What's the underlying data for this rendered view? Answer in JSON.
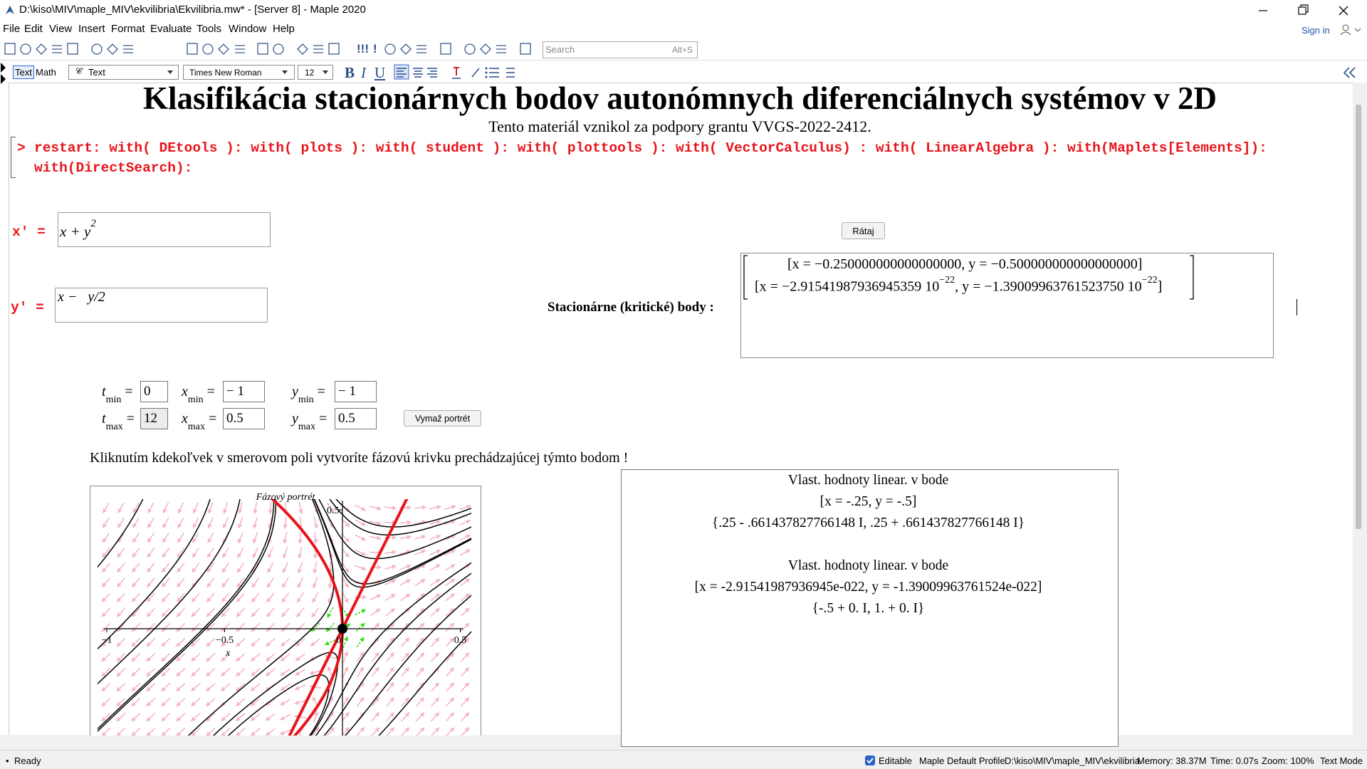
{
  "window": {
    "title": "D:\\kiso\\MIV\\maple_MIV\\ekvilibria\\Ekvilibria.mw* - [Server 8] - Maple 2020"
  },
  "menu": [
    "File",
    "Edit",
    "View",
    "Insert",
    "Format",
    "Evaluate",
    "Tools",
    "Window",
    "Help"
  ],
  "sign_in": "Sign in",
  "toolbar": {
    "execute_all": "!!!",
    "execute": "!",
    "search_placeholder": "Search",
    "search_shortcut": "Alt+S"
  },
  "format_bar": {
    "text_mode": "Text",
    "math_mode": "Math",
    "style": "Text",
    "font": "Times New Roman",
    "size": "12",
    "bold": "B",
    "italic": "I",
    "underline": "U"
  },
  "document": {
    "title": "Klasifikácia stacionárnych bodov autonómnych diferenciálnych systémov v 2D",
    "subtitle": "Tento materiál vznikol za podpory grantu VVGS-2022-2412.",
    "prompt": ">",
    "command_lines": [
      "restart: with( DEtools ): with( plots ): with( student ): with( plottools ): with( VectorCalculus) : with( LinearAlgebra ): with(Maplets[Elements]):",
      "with(DirectSearch):"
    ],
    "x_label": "x' =",
    "x_expr": {
      "base": "x + y",
      "exponent": "2"
    },
    "y_label": "y' =",
    "y_expr": "x −   y/2",
    "compute_button": "Rátaj",
    "stationary_label": "Stacionárne (kritické) body :",
    "stationary_rows": [
      [
        "[x = −0.250000000000000000, y = −0.500000000000000000]"
      ],
      [
        "[x = −2.91541987936945359 10",
        "−22",
        ", y = −1.39009963761523750 10",
        "−22",
        "]"
      ]
    ],
    "params": {
      "eq": "=",
      "items": [
        {
          "var": "t",
          "sub": "min",
          "value": "0"
        },
        {
          "var": "x",
          "sub": "min",
          "value": "− 1"
        },
        {
          "var": "y",
          "sub": "min",
          "value": "− 1"
        },
        {
          "var": "t",
          "sub": "max",
          "value": "12"
        },
        {
          "var": "x",
          "sub": "max",
          "value": "0.5"
        },
        {
          "var": "y",
          "sub": "max",
          "value": "0.5"
        }
      ]
    },
    "clear_button": "Vymaž portrét",
    "instruction": "Kliknutím kdekoľvek v smerovom poli vytvoríte fázovú krivku prechádzajúcej týmto bodom !",
    "plot": {
      "title": "Fázový portrét",
      "x_ticks": [
        "−1",
        "−0.5",
        "0.5"
      ],
      "origin": "0",
      "y_tick": "0.5",
      "x_label": "x"
    },
    "eigen_lines": [
      "Vlast. hodnoty linear. v bode",
      "[x = -.25, y = -.5]",
      "{.25 - .661437827766148 I, .25 + .661437827766148 I}",
      "Vlast. hodnoty linear. v bode",
      "[x = -2.91541987936945e-022, y = -1.39009963761524e-022]",
      "{-.5 + 0. I, 1. + 0. I}"
    ]
  },
  "status": {
    "ready": "Ready",
    "editable": "Editable",
    "profile": "Maple Default Profile",
    "path": "D:\\kiso\\MIV\\maple_MIV\\ekvilibria",
    "memory": "Memory: 38.37M",
    "time": "Time: 0.07s",
    "zoom": "Zoom: 100%",
    "mode": "Text Mode"
  }
}
